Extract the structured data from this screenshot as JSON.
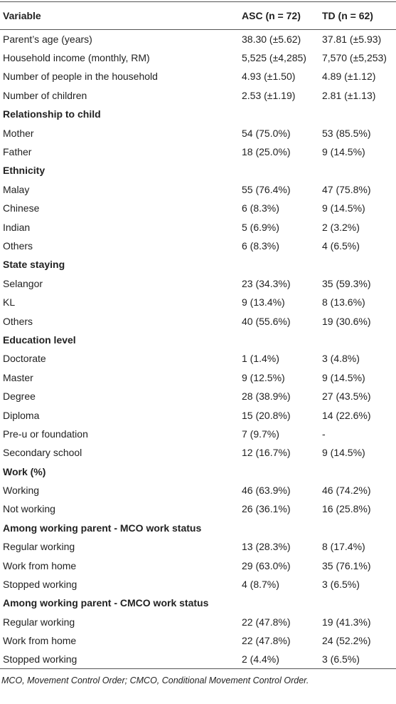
{
  "table": {
    "header": [
      "Variable",
      "ASC (n = 72)",
      "TD (n = 62)"
    ],
    "rows": [
      [
        "Parent’s age (years)",
        "38.30 (±5.62)",
        "37.81 (±5.93)"
      ],
      [
        "Household income (monthly, RM)",
        "5,525 (±4,285)",
        "7,570 (±5,253)"
      ],
      [
        "Number of people in the household",
        "4.93 (±1.50)",
        "4.89 (±1.12)"
      ],
      [
        "Number of children",
        "2.53 (±1.19)",
        "2.81 (±1.13)"
      ],
      [
        "Relationship to child"
      ],
      [
        "Mother",
        "54 (75.0%)",
        "53 (85.5%)"
      ],
      [
        "Father",
        "18 (25.0%)",
        "9 (14.5%)"
      ],
      [
        "Ethnicity"
      ],
      [
        "Malay",
        "55 (76.4%)",
        "47 (75.8%)"
      ],
      [
        "Chinese",
        "6 (8.3%)",
        "9 (14.5%)"
      ],
      [
        "Indian",
        "5 (6.9%)",
        "2 (3.2%)"
      ],
      [
        "Others",
        "6 (8.3%)",
        "4 (6.5%)"
      ],
      [
        "State staying"
      ],
      [
        "Selangor",
        "23 (34.3%)",
        "35 (59.3%)"
      ],
      [
        "KL",
        "9 (13.4%)",
        "8 (13.6%)"
      ],
      [
        "Others",
        "40 (55.6%)",
        "19 (30.6%)"
      ],
      [
        "Education level"
      ],
      [
        "Doctorate",
        "1 (1.4%)",
        "3 (4.8%)"
      ],
      [
        "Master",
        "9 (12.5%)",
        "9 (14.5%)"
      ],
      [
        "Degree",
        "28 (38.9%)",
        "27 (43.5%)"
      ],
      [
        "Diploma",
        "15 (20.8%)",
        "14 (22.6%)"
      ],
      [
        "Pre-u or foundation",
        "7 (9.7%)",
        "-"
      ],
      [
        "Secondary school",
        "12 (16.7%)",
        "9 (14.5%)"
      ],
      [
        "Work (%)"
      ],
      [
        "Working",
        "46 (63.9%)",
        "46 (74.2%)"
      ],
      [
        "Not working",
        "26 (36.1%)",
        "16 (25.8%)"
      ],
      [
        "Among working parent - MCO work status"
      ],
      [
        "Regular working",
        "13 (28.3%)",
        "8 (17.4%)"
      ],
      [
        "Work from home",
        "29 (63.0%)",
        "35 (76.1%)"
      ],
      [
        "Stopped working",
        "4 (8.7%)",
        "3 (6.5%)"
      ],
      [
        "Among working parent - CMCO work status"
      ],
      [
        "Regular working",
        "22 (47.8%)",
        "19 (41.3%)"
      ],
      [
        "Work from home",
        "22 (47.8%)",
        "24 (52.2%)"
      ],
      [
        "Stopped working",
        "2 (4.4%)",
        "3 (6.5%)"
      ]
    ]
  },
  "footnote": "MCO, Movement Control Order; CMCO, Conditional Movement Control Order."
}
